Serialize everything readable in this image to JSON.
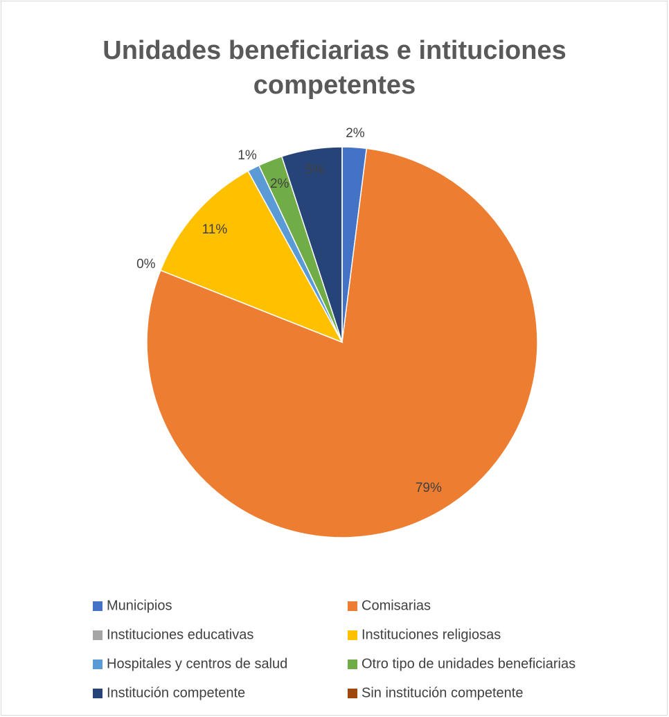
{
  "chart_data": {
    "type": "pie",
    "title": [
      "Unidades beneficiarias e intituciones",
      "competentes"
    ],
    "categories": [
      "Municipios",
      "Comisarias",
      "Instituciones educativas",
      "Instituciones religiosas",
      "Hospitales y centros de salud",
      "Otro tipo de unidades beneficiarias",
      "Institución competente",
      "Sin institución competente"
    ],
    "values": [
      2,
      79,
      0,
      11,
      1,
      2,
      5,
      0
    ],
    "value_labels": [
      "2%",
      "79%",
      "0%",
      "11%",
      "1%",
      "2%",
      "5%",
      null
    ],
    "colors": [
      "#4472c4",
      "#ed7d31",
      "#a5a5a5",
      "#ffc000",
      "#5b9bd5",
      "#70ad47",
      "#264478",
      "#9e480e"
    ],
    "legend": "bottom"
  }
}
